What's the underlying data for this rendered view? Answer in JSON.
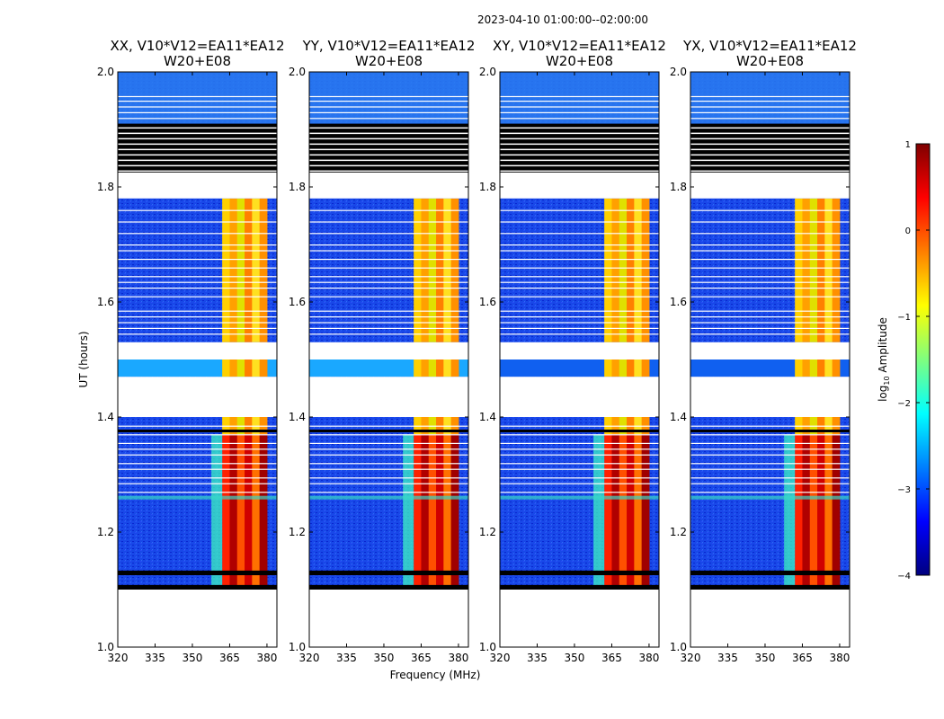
{
  "figure": {
    "suptitle": "2023-04-10  01:00:00--02:00:00",
    "xlabel": "Frequency (MHz)",
    "ylabel": "UT (hours)"
  },
  "chart_data": {
    "type": "heatmap",
    "x_range": [
      320,
      384
    ],
    "y_range": [
      1.0,
      2.0
    ],
    "xticks": [
      "320",
      "335",
      "350",
      "365",
      "380"
    ],
    "xtick_values": [
      320,
      335,
      350,
      365,
      380
    ],
    "yticks": [
      "1.0",
      "1.2",
      "1.4",
      "1.6",
      "1.8",
      "2.0"
    ],
    "ytick_values": [
      1.0,
      1.2,
      1.4,
      1.6,
      1.8,
      2.0
    ],
    "panels": [
      {
        "title_line1": "XX, V10*V12=EA11*EA12",
        "title_line2": "W20+E08",
        "corr": "XX"
      },
      {
        "title_line1": "YY, V10*V12=EA11*EA12",
        "title_line2": "W20+E08",
        "corr": "YY"
      },
      {
        "title_line1": "XY, V10*V12=EA11*EA12",
        "title_line2": "W20+E08",
        "corr": "XY"
      },
      {
        "title_line1": "YX, V10*V12=EA11*EA12",
        "title_line2": "W20+E08",
        "corr": "YX"
      }
    ],
    "blank_bands_ut": [
      [
        1.0,
        1.1
      ],
      [
        1.4,
        1.47
      ],
      [
        1.5,
        1.53
      ],
      [
        1.78,
        1.825
      ]
    ],
    "flagged_bands_ut": [
      [
        1.1,
        1.108
      ],
      [
        1.125,
        1.133
      ],
      [
        1.825,
        1.91
      ]
    ],
    "rfi_band_mhz": [
      362,
      380
    ],
    "colorbar": {
      "label": "log10 Amplitude",
      "label_main": "log",
      "label_sub": "10",
      "label_rest": " Amplitude",
      "min": -4,
      "max": 1,
      "ticks": [
        "1",
        "0",
        "−1",
        "−2",
        "−3",
        "−4"
      ],
      "tick_values": [
        1,
        0,
        -1,
        -2,
        -3,
        -4
      ],
      "colors": [
        "#00007f",
        "#0000ff",
        "#007fff",
        "#00ffff",
        "#7fff7f",
        "#ffff00",
        "#ff7f00",
        "#ff0000",
        "#7f0000"
      ]
    }
  }
}
